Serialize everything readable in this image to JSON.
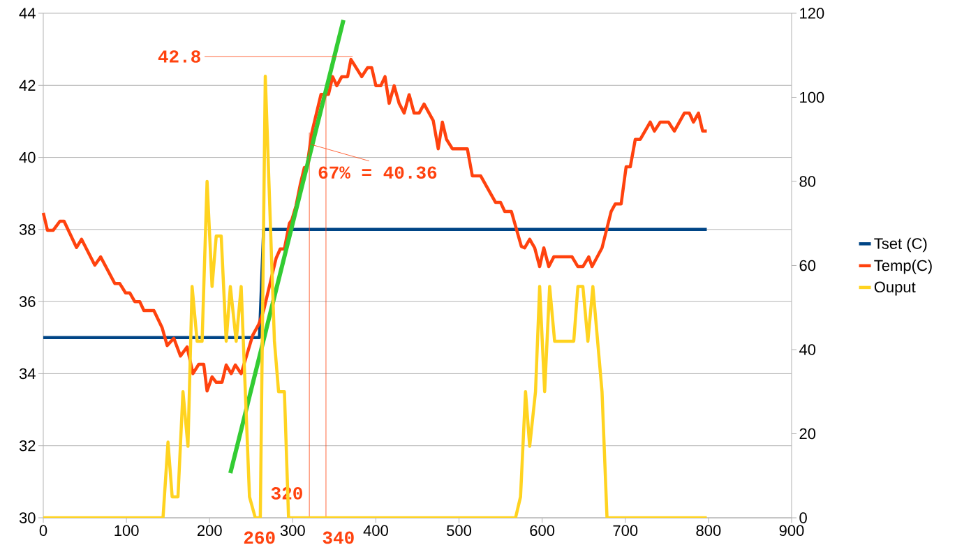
{
  "chart_data": {
    "type": "line",
    "series": [
      {
        "name": "Tset (C)",
        "color": "#004586",
        "x": [
          0,
          260,
          265,
          798
        ],
        "values": [
          35,
          35,
          38,
          38
        ]
      },
      {
        "name": "Temp(C)",
        "color": "#ff420e",
        "x": [
          0,
          5,
          12,
          20,
          25,
          40,
          46,
          62,
          69,
          86,
          92,
          99,
          104,
          110,
          116,
          121,
          133,
          143,
          149,
          157,
          165,
          173,
          180,
          187,
          193,
          197,
          203,
          208,
          215,
          220,
          226,
          231,
          238,
          247,
          252,
          259,
          265,
          272,
          276,
          280,
          285,
          290,
          296,
          299,
          304,
          309,
          314,
          317,
          323,
          334,
          343,
          348,
          353,
          359,
          366,
          370,
          383,
          390,
          395,
          400,
          406,
          411,
          416,
          422,
          428,
          434,
          440,
          446,
          452,
          458,
          469,
          475,
          480,
          485,
          492,
          510,
          516,
          526,
          544,
          550,
          555,
          563,
          575,
          579,
          585,
          591,
          597,
          602,
          608,
          614,
          636,
          643,
          649,
          656,
          660,
          672,
          683,
          688,
          695,
          701,
          706,
          712,
          718,
          730,
          735,
          742,
          752,
          759,
          771,
          777,
          782,
          788,
          793,
          798
        ],
        "values": [
          38.46,
          37.98,
          37.98,
          38.23,
          38.23,
          37.5,
          37.73,
          37.01,
          37.24,
          36.5,
          36.5,
          36.24,
          36.24,
          36.0,
          36.0,
          35.75,
          35.75,
          35.27,
          34.78,
          34.98,
          34.49,
          34.74,
          34.0,
          34.26,
          34.26,
          33.52,
          33.91,
          33.76,
          33.76,
          34.24,
          34.0,
          34.24,
          34.0,
          34.69,
          35.07,
          35.36,
          35.75,
          36.43,
          36.82,
          37.2,
          37.46,
          37.46,
          38.17,
          38.27,
          38.66,
          39.24,
          39.72,
          39.72,
          40.69,
          41.75,
          41.75,
          42.24,
          41.99,
          42.24,
          42.24,
          42.72,
          42.24,
          42.49,
          42.49,
          41.99,
          41.99,
          42.24,
          41.5,
          41.99,
          41.5,
          41.23,
          41.74,
          41.23,
          41.23,
          41.48,
          41.02,
          40.24,
          40.98,
          40.5,
          40.24,
          40.24,
          39.49,
          39.49,
          38.75,
          38.75,
          38.5,
          38.5,
          37.53,
          37.49,
          37.73,
          37.49,
          36.97,
          37.49,
          36.97,
          37.24,
          37.24,
          36.97,
          36.97,
          37.24,
          36.97,
          37.49,
          38.5,
          38.71,
          38.71,
          39.74,
          39.74,
          40.5,
          40.5,
          40.98,
          40.73,
          40.98,
          40.98,
          40.73,
          41.23,
          41.23,
          40.98,
          41.23,
          40.73,
          40.73
        ]
      },
      {
        "name": "Ouput",
        "color": "#ffd320",
        "axis": "y2",
        "x": [
          0,
          144,
          150,
          155,
          162,
          168,
          174,
          179,
          185,
          191,
          197,
          203,
          208,
          214,
          220,
          225,
          232,
          238,
          248,
          255,
          261,
          267,
          278,
          283,
          290,
          295,
          568,
          574,
          580,
          585,
          592,
          597,
          603,
          609,
          615,
          638,
          643,
          649,
          655,
          661,
          672,
          678,
          798
        ],
        "values": [
          0,
          0,
          18,
          5,
          5,
          30,
          17,
          55,
          42,
          42,
          80,
          55,
          67,
          67,
          42,
          55,
          42,
          55,
          5,
          0,
          0,
          105,
          42,
          30,
          30,
          0,
          0,
          5,
          30,
          17,
          30,
          55,
          30,
          55,
          42,
          42,
          55,
          55,
          42,
          55,
          30,
          0,
          0
        ]
      },
      {
        "type": "line",
        "color": "#33cc33",
        "x": [
          225,
          361
        ],
        "values": [
          31.24,
          43.81
        ]
      }
    ],
    "xlim": [
      0,
      900
    ],
    "xticks": [
      0,
      100,
      200,
      300,
      400,
      500,
      600,
      700,
      800,
      900
    ],
    "ylim": [
      30,
      44
    ],
    "yticks": [
      30,
      32,
      34,
      36,
      38,
      40,
      42,
      44
    ],
    "y2lim": [
      0,
      120
    ],
    "y2ticks": [
      0,
      20,
      40,
      60,
      80,
      100,
      120
    ],
    "grid": "y",
    "legend": "right",
    "line_style": "solid",
    "annotations": [
      {
        "text": "42.8",
        "x": 372,
        "y": 42.8
      },
      {
        "text": "67% = 40.36",
        "x": 322,
        "y": 40.36
      },
      {
        "text": "320",
        "x": 320,
        "y": 40.69
      },
      {
        "text": "340",
        "x": 340,
        "y": 41.75
      },
      {
        "text": "260",
        "x": 260,
        "y": 30
      }
    ]
  }
}
